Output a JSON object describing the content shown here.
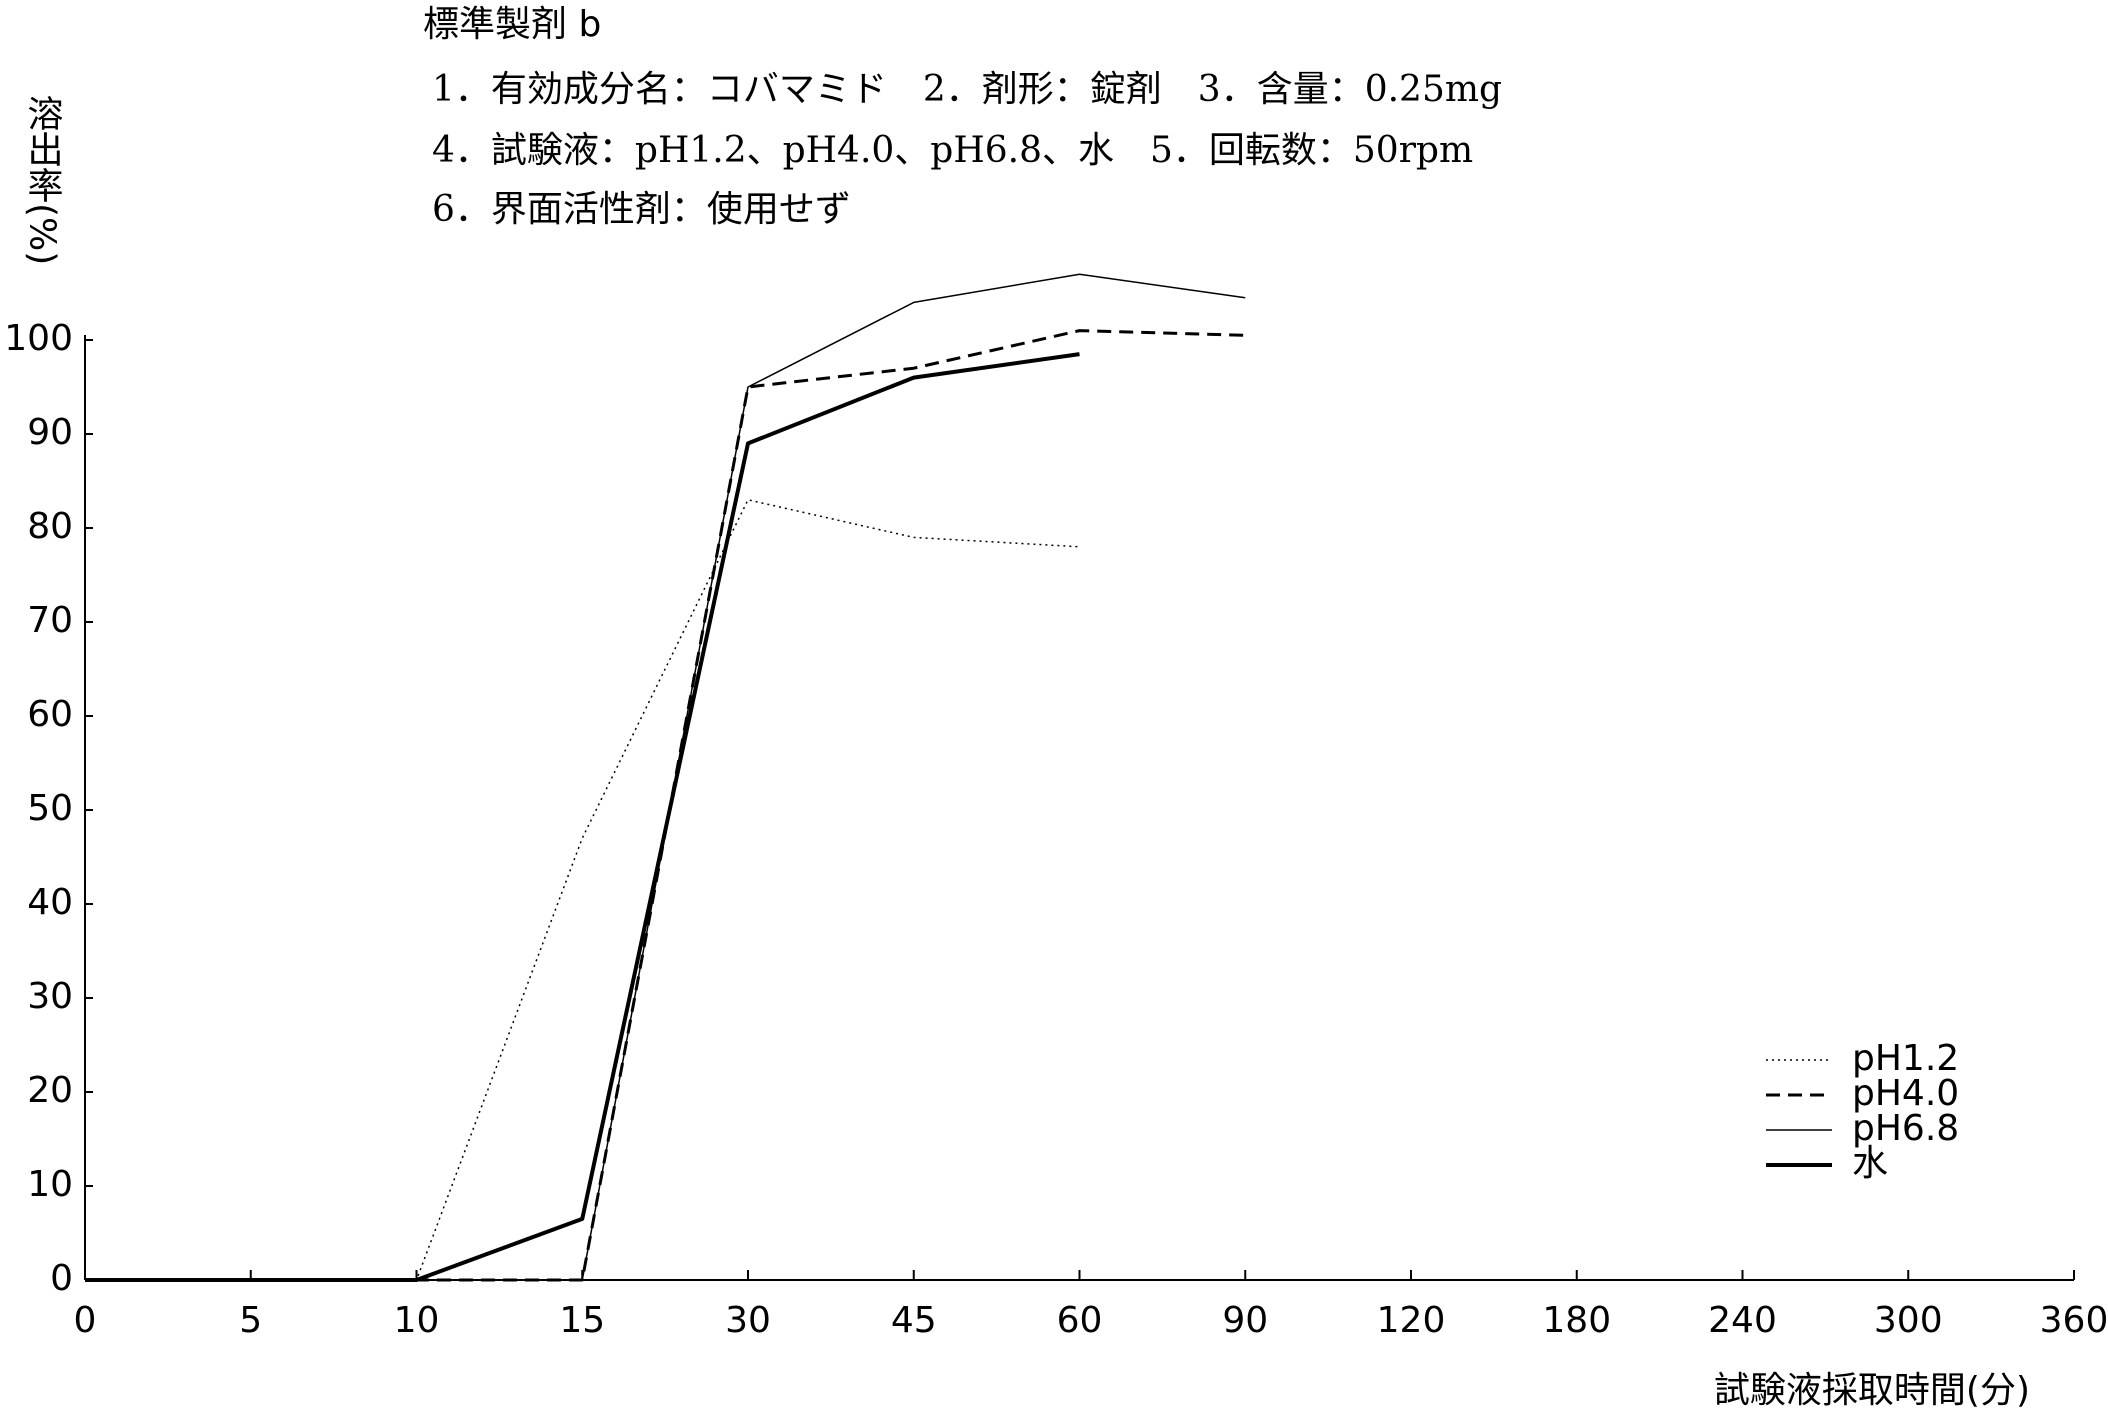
{
  "chart_data": {
    "type": "line",
    "title": "標準製剤 b",
    "subtitle": [
      "1．有効成分名：コバマミド　2．剤形：錠剤　3．含量：0.25mg",
      "4．試験液：pH1.2、pH4.0、pH6.8、水　5．回転数：50rpm",
      "6．界面活性剤：使用せず"
    ],
    "y_label": "溶出率(%)",
    "x_label": "試験液採取時間(分)",
    "categories": [
      "0",
      "5",
      "10",
      "15",
      "30",
      "45",
      "60",
      "90",
      "120",
      "180",
      "240",
      "300",
      "360"
    ],
    "series": [
      {
        "name": "pH1.2",
        "color": "#000000",
        "style": "dotted",
        "values": [
          0,
          0,
          0,
          47,
          83,
          79,
          78,
          null,
          null,
          null,
          null,
          null,
          null
        ]
      },
      {
        "name": "pH4.0",
        "color": "#000000",
        "style": "dashed",
        "values": [
          0,
          0,
          0,
          0,
          95,
          97,
          101,
          100.5,
          null,
          null,
          null,
          null,
          null
        ]
      },
      {
        "name": "pH6.8",
        "color": "#000000",
        "style": "thin",
        "values": [
          0,
          0,
          0,
          0,
          95,
          104,
          107,
          104.5,
          null,
          null,
          null,
          null,
          null
        ]
      },
      {
        "name": "水",
        "color": "#000000",
        "style": "bold",
        "values": [
          0,
          0,
          0,
          6.5,
          89,
          96,
          98.5,
          null,
          null,
          null,
          null,
          null,
          null
        ]
      }
    ],
    "ylim": [
      0,
      110
    ],
    "yticks": [
      0,
      10,
      20,
      30,
      40,
      50,
      60,
      70,
      80,
      90,
      100
    ],
    "grid": false,
    "legend": "lower right"
  }
}
